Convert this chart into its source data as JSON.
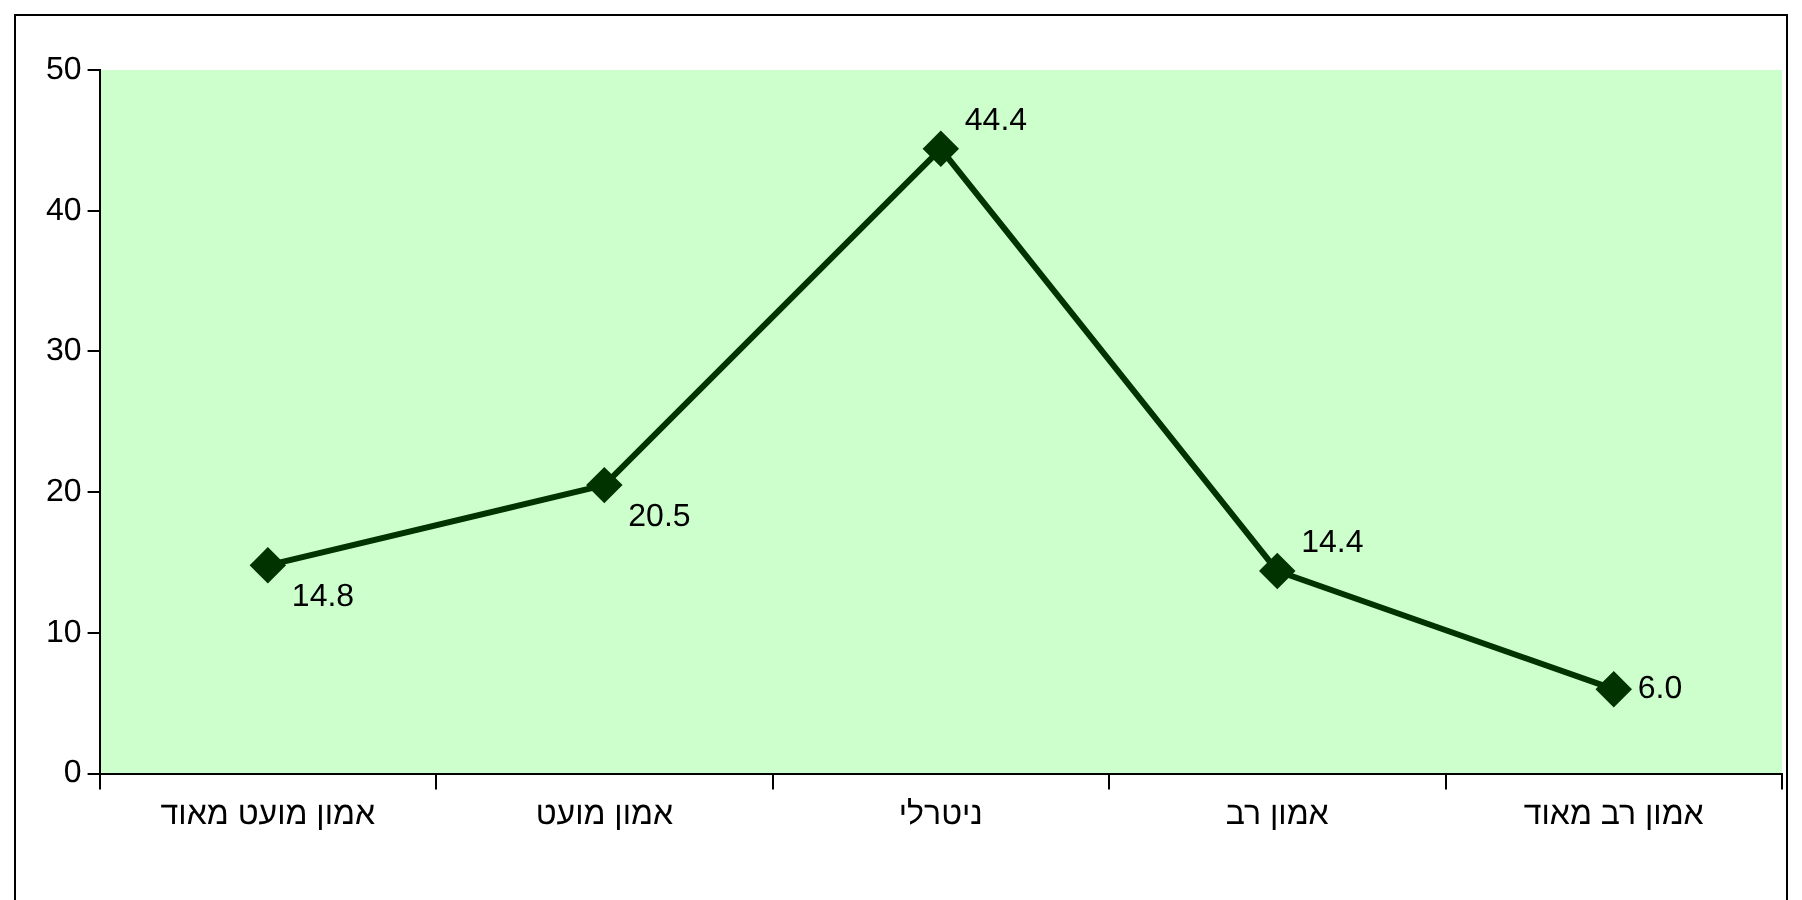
{
  "chart_data": {
    "type": "line",
    "categories": [
      "אמון מועט מאוד",
      "אמון מועט",
      "ניטרלי",
      "אמון רב",
      "אמון רב מאוד"
    ],
    "series": [
      {
        "color": "#003300",
        "values": [
          14.8,
          20.5,
          44.4,
          14.4,
          6.0
        ],
        "value_labels": [
          "14.8",
          "20.5",
          "44.4",
          "14.4",
          "6.0"
        ]
      }
    ],
    "ylim": [
      0,
      50
    ],
    "yticks": [
      0,
      10,
      20,
      30,
      40,
      50
    ],
    "marker": "diamond",
    "line_style": "solid",
    "legend": false,
    "grid": false
  }
}
